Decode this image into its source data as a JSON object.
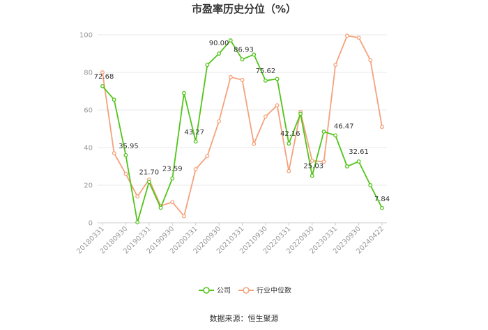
{
  "chart_data": {
    "type": "line",
    "title": "市盈率历史分位（%）",
    "xlabel": "",
    "ylabel": "",
    "ylim": [
      0,
      100
    ],
    "yticks": [
      0,
      20,
      40,
      60,
      80,
      100
    ],
    "grid": true,
    "legend_position": "bottom",
    "x": [
      "20180331",
      "20180630",
      "20180930",
      "20181231",
      "20190331",
      "20190630",
      "20190930",
      "20191231",
      "20200331",
      "20200630",
      "20200930",
      "20201231",
      "20210331",
      "20210630",
      "20210930",
      "20211231",
      "20220331",
      "20220630",
      "20220930",
      "20221231",
      "20230331",
      "20230630",
      "20230930",
      "20231231",
      "20240422"
    ],
    "xtick_labels": [
      "20180331",
      "20180930",
      "20190331",
      "20190930",
      "20200331",
      "20200930",
      "20210331",
      "20210930",
      "20220331",
      "20220930",
      "20230331",
      "20230930",
      "20240422"
    ],
    "series": [
      {
        "name": "公司",
        "color": "#52c41a",
        "values": [
          72.68,
          65.5,
          35.95,
          0.2,
          21.7,
          8.0,
          23.59,
          69.0,
          43.27,
          84.0,
          90.0,
          97.0,
          86.93,
          89.5,
          75.62,
          76.5,
          42.16,
          58.0,
          25.03,
          48.5,
          46.47,
          30.0,
          32.61,
          20.0,
          7.84
        ],
        "labels": {
          "0": "72.68",
          "2": "35.95",
          "4": "21.70",
          "6": "23.59",
          "8": "43.27",
          "10": "90.00",
          "12": "86.93",
          "14": "75.62",
          "16": "42.16",
          "18": "25.03",
          "20": "46.47",
          "22": "32.61",
          "24": "7.84"
        }
      },
      {
        "name": "行业中位数",
        "color": "#f4a27c",
        "values": [
          80.0,
          37.0,
          26.0,
          14.0,
          23.0,
          9.0,
          11.0,
          3.5,
          28.5,
          35.5,
          54.0,
          77.5,
          76.0,
          42.0,
          56.5,
          62.5,
          27.5,
          59.0,
          33.0,
          32.5,
          84.0,
          99.5,
          98.5,
          86.5,
          51.0
        ]
      }
    ]
  },
  "source": "数据来源：恒生聚源"
}
